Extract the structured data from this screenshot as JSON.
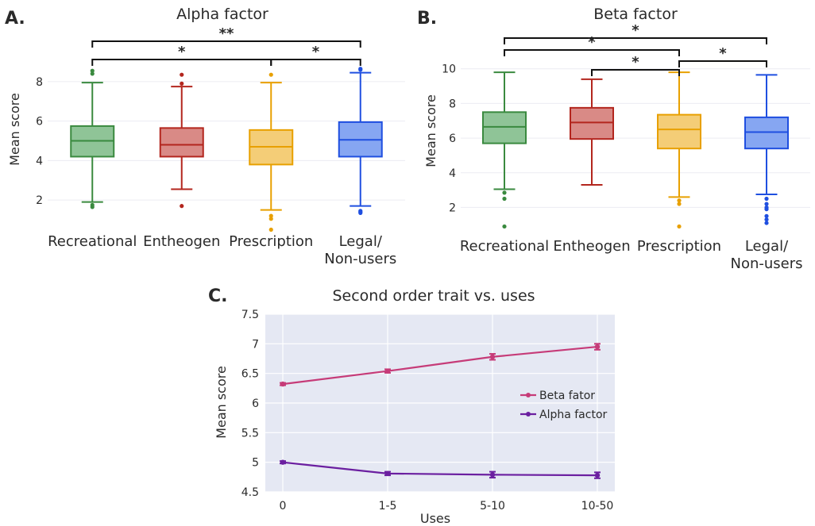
{
  "figure": {
    "panels": [
      {
        "letter": "A.",
        "title": "Alpha factor"
      },
      {
        "letter": "B.",
        "title": "Beta factor"
      },
      {
        "letter": "C.",
        "title": "Second order trait vs. uses"
      }
    ]
  },
  "chart_data": [
    {
      "type": "box",
      "letter": "A.",
      "title": "Alpha factor",
      "ylabel": "Mean score",
      "ylim": [
        0.4,
        9.0
      ],
      "yticks": [
        2,
        4,
        6,
        8
      ],
      "categories": [
        "Recreational",
        "Entheogen",
        "Prescription",
        "Legal/\nNon-users"
      ],
      "colors": [
        "#3a8a3f",
        "#b3261e",
        "#e8a000",
        "#1f4fe0"
      ],
      "fills": [
        "#8fc497",
        "#d98a86",
        "#f4cd77",
        "#86a6f2"
      ],
      "boxes": [
        {
          "name": "Recreational",
          "q1": 4.2,
          "median": 5.0,
          "q3": 5.75,
          "whisker_low": 1.9,
          "whisker_high": 7.95,
          "outliers": [
            1.65,
            1.75,
            8.4,
            8.55
          ]
        },
        {
          "name": "Entheogen",
          "q1": 4.2,
          "median": 4.8,
          "q3": 5.65,
          "whisker_low": 2.55,
          "whisker_high": 7.75,
          "outliers": [
            1.7,
            7.9,
            8.35
          ]
        },
        {
          "name": "Prescription",
          "q1": 3.8,
          "median": 4.7,
          "q3": 5.55,
          "whisker_low": 1.5,
          "whisker_high": 7.95,
          "outliers": [
            0.5,
            1.05,
            1.2,
            8.35
          ]
        },
        {
          "name": "Legal/ Non-users",
          "q1": 4.2,
          "median": 5.05,
          "q3": 5.95,
          "whisker_low": 1.7,
          "whisker_high": 8.45,
          "outliers": [
            1.35,
            1.4,
            1.45,
            8.6,
            8.65
          ]
        }
      ],
      "significance": [
        {
          "from": 0,
          "to": 3,
          "label": "**"
        },
        {
          "from": 0,
          "to": 2,
          "label": "*"
        },
        {
          "from": 2,
          "to": 3,
          "label": "*"
        }
      ]
    },
    {
      "type": "box",
      "letter": "B.",
      "title": "Beta factor",
      "ylabel": "Mean score",
      "ylim": [
        0.6,
        10.4
      ],
      "yticks": [
        2,
        4,
        6,
        8,
        10
      ],
      "categories": [
        "Recreational",
        "Entheogen",
        "Prescription",
        "Legal/\nNon-users"
      ],
      "colors": [
        "#3a8a3f",
        "#b3261e",
        "#e8a000",
        "#1f4fe0"
      ],
      "fills": [
        "#8fc497",
        "#d98a86",
        "#f4cd77",
        "#86a6f2"
      ],
      "boxes": [
        {
          "name": "Recreational",
          "q1": 5.7,
          "median": 6.65,
          "q3": 7.5,
          "whisker_low": 3.05,
          "whisker_high": 9.8,
          "outliers": [
            0.9,
            2.5,
            2.85
          ]
        },
        {
          "name": "Entheogen",
          "q1": 5.95,
          "median": 6.9,
          "q3": 7.75,
          "whisker_low": 3.3,
          "whisker_high": 9.4,
          "outliers": []
        },
        {
          "name": "Prescription",
          "q1": 5.4,
          "median": 6.5,
          "q3": 7.35,
          "whisker_low": 2.6,
          "whisker_high": 9.8,
          "outliers": [
            0.9,
            2.2,
            2.4
          ]
        },
        {
          "name": "Legal/ Non-users",
          "q1": 5.4,
          "median": 6.35,
          "q3": 7.2,
          "whisker_low": 2.75,
          "whisker_high": 9.65,
          "outliers": [
            1.1,
            1.3,
            1.5,
            1.9,
            2.0,
            2.2,
            2.5
          ]
        }
      ],
      "significance": [
        {
          "from": 0,
          "to": 3,
          "label": "*"
        },
        {
          "from": 0,
          "to": 2,
          "label": "*"
        },
        {
          "from": 2,
          "to": 3,
          "label": "*"
        },
        {
          "from": 1,
          "to": 2,
          "label": "*"
        }
      ]
    },
    {
      "type": "line",
      "letter": "C.",
      "title": "Second order trait vs. uses",
      "xlabel": "Uses",
      "ylabel": "Mean score",
      "categories": [
        "0",
        "1-5",
        "5-10",
        "10-50"
      ],
      "ylim": [
        4.5,
        7.5
      ],
      "yticks": [
        "4.5",
        "5",
        "5.5",
        "6",
        "6.5",
        "7",
        "7.5"
      ],
      "grid": true,
      "legend_position": "right",
      "series": [
        {
          "name": "Beta fator",
          "color": "#c63b78",
          "values": [
            6.32,
            6.54,
            6.78,
            6.95
          ],
          "errors": [
            0.02,
            0.03,
            0.05,
            0.05
          ]
        },
        {
          "name": "Alpha factor",
          "color": "#6b1fa0",
          "values": [
            5.0,
            4.81,
            4.79,
            4.78
          ],
          "errors": [
            0.02,
            0.03,
            0.05,
            0.05
          ]
        }
      ]
    }
  ]
}
